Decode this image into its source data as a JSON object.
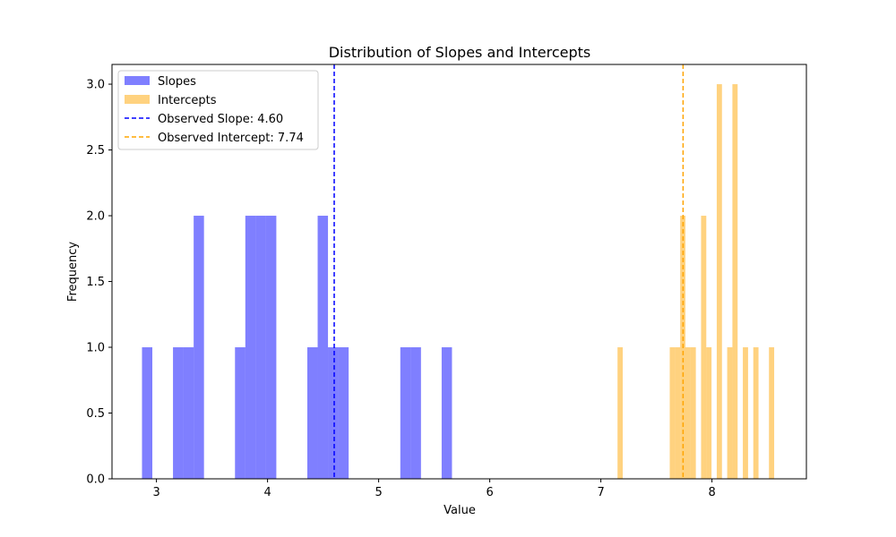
{
  "chart_data": {
    "type": "bar",
    "title": "Distribution of Slopes and Intercepts",
    "xlabel": "Value",
    "ylabel": "Frequency",
    "xlim": [
      2.6,
      8.85
    ],
    "ylim": [
      0,
      3.15
    ],
    "xticks": [
      3,
      4,
      5,
      6,
      7,
      8
    ],
    "yticks": [
      0.0,
      0.5,
      1.0,
      1.5,
      2.0,
      2.5,
      3.0
    ],
    "xtick_labels": [
      "3",
      "4",
      "5",
      "6",
      "7",
      "8"
    ],
    "ytick_labels": [
      "0.0",
      "0.5",
      "1.0",
      "1.5",
      "2.0",
      "2.5",
      "3.0"
    ],
    "grid": false,
    "legend_position": "top-left",
    "series": [
      {
        "name": "Slopes",
        "color": "#0000ff",
        "opacity": 0.5,
        "bin_edges": [
          2.87,
          2.963,
          3.056,
          3.149,
          3.242,
          3.335,
          3.428,
          3.521,
          3.614,
          3.707,
          3.8,
          3.893,
          3.986,
          4.079,
          4.172,
          4.265,
          4.358,
          4.451,
          4.544,
          4.637,
          4.73,
          4.823,
          4.916,
          5.009,
          5.102,
          5.195,
          5.288,
          5.381,
          5.474,
          5.567,
          5.66
        ],
        "counts": [
          1,
          0,
          0,
          1,
          1,
          2,
          0,
          0,
          0,
          1,
          2,
          2,
          2,
          0,
          0,
          0,
          1,
          2,
          1,
          1,
          0,
          0,
          0,
          0,
          0,
          1,
          1,
          0,
          0,
          1
        ]
      },
      {
        "name": "Intercepts",
        "color": "#ffa500",
        "opacity": 0.5,
        "bin_edges": [
          7.15,
          7.197,
          7.244,
          7.291,
          7.338,
          7.385,
          7.432,
          7.479,
          7.526,
          7.573,
          7.62,
          7.667,
          7.714,
          7.761,
          7.808,
          7.855,
          7.902,
          7.949,
          7.996,
          8.043,
          8.09,
          8.137,
          8.184,
          8.231,
          8.278,
          8.325,
          8.372,
          8.419,
          8.466,
          8.513,
          8.56
        ],
        "counts": [
          1,
          0,
          0,
          0,
          0,
          0,
          0,
          0,
          0,
          0,
          1,
          1,
          2,
          1,
          1,
          0,
          2,
          1,
          0,
          3,
          0,
          1,
          3,
          0,
          1,
          0,
          1,
          0,
          0,
          1
        ]
      }
    ],
    "reference_lines": [
      {
        "name": "Observed Slope: 4.60",
        "x": 4.6,
        "color": "#0000ff",
        "style": "dashed"
      },
      {
        "name": "Observed Intercept: 7.74",
        "x": 7.74,
        "color": "#ffa500",
        "style": "dashed"
      }
    ]
  }
}
